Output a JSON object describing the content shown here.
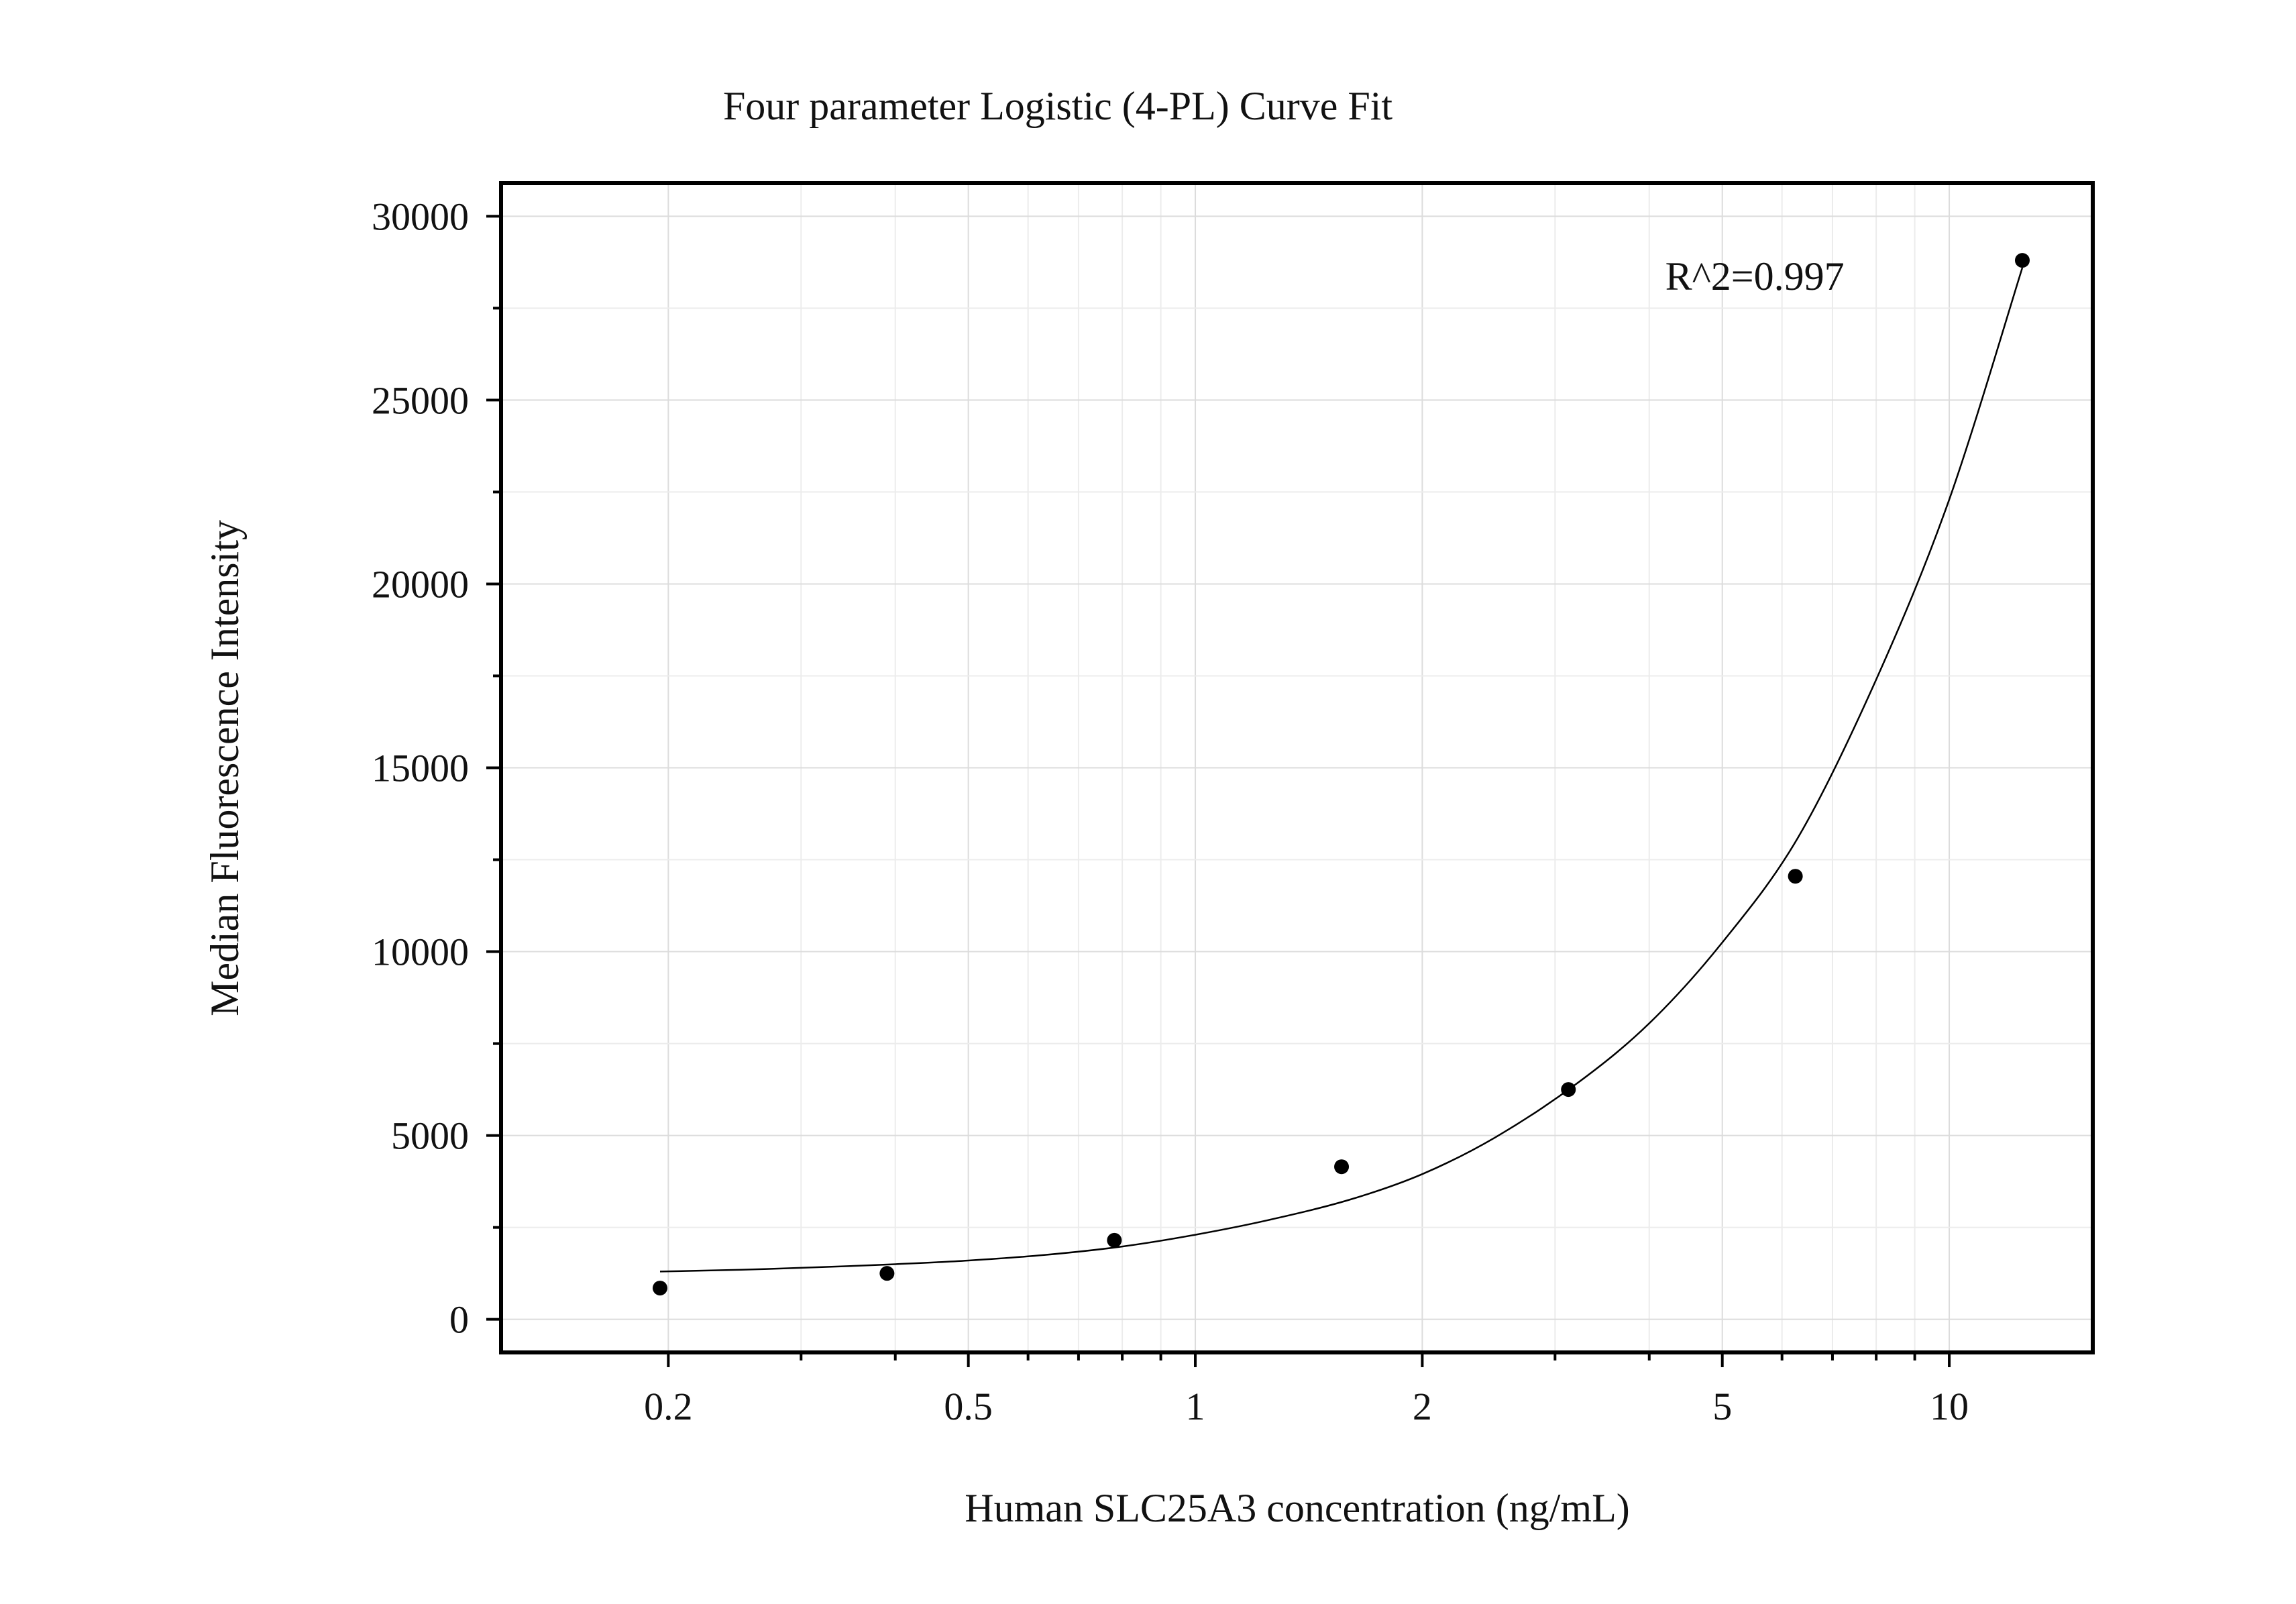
{
  "chart_data": {
    "type": "scatter",
    "title": "Four parameter Logistic (4-PL) Curve Fit",
    "xlabel": "Human SLC25A3 concentration (ng/mL)",
    "ylabel": "Median Fluorescence Intensity",
    "x_scale": "log",
    "xlim": [
      0.12,
      15.5
    ],
    "ylim": [
      -900,
      30900
    ],
    "x_ticks": [
      {
        "value": 0.2,
        "label": "0.2"
      },
      {
        "value": 0.5,
        "label": "0.5"
      },
      {
        "value": 1,
        "label": "1"
      },
      {
        "value": 2,
        "label": "2"
      },
      {
        "value": 5,
        "label": "5"
      },
      {
        "value": 10,
        "label": "10"
      }
    ],
    "y_ticks": [
      {
        "value": 0,
        "label": "0"
      },
      {
        "value": 5000,
        "label": "5000"
      },
      {
        "value": 10000,
        "label": "10000"
      },
      {
        "value": 15000,
        "label": "15000"
      },
      {
        "value": 20000,
        "label": "20000"
      },
      {
        "value": 25000,
        "label": "25000"
      },
      {
        "value": 30000,
        "label": "30000"
      }
    ],
    "grid": true,
    "series": [
      {
        "type": "scatter",
        "x": [
          0.195,
          0.39,
          0.781,
          1.563,
          3.125,
          6.25,
          12.5
        ],
        "y": [
          850,
          1250,
          2150,
          4150,
          6250,
          12050,
          28800
        ],
        "color": "#000000"
      },
      {
        "type": "line",
        "x": [
          0.195,
          0.25,
          0.32,
          0.4,
          0.5,
          0.63,
          0.8,
          1.0,
          1.25,
          1.6,
          2.0,
          2.5,
          3.2,
          4.0,
          5.0,
          6.3,
          8.0,
          10.0,
          12.5
        ],
        "y": [
          1300,
          1350,
          1420,
          1500,
          1600,
          1750,
          1980,
          2300,
          2700,
          3250,
          3950,
          4950,
          6400,
          8050,
          10250,
          13100,
          17400,
          22300,
          28600
        ],
        "color": "#000000"
      }
    ],
    "annotations": [
      {
        "text": "R^2=0.997",
        "x": 4.2,
        "y": 28000
      }
    ]
  }
}
